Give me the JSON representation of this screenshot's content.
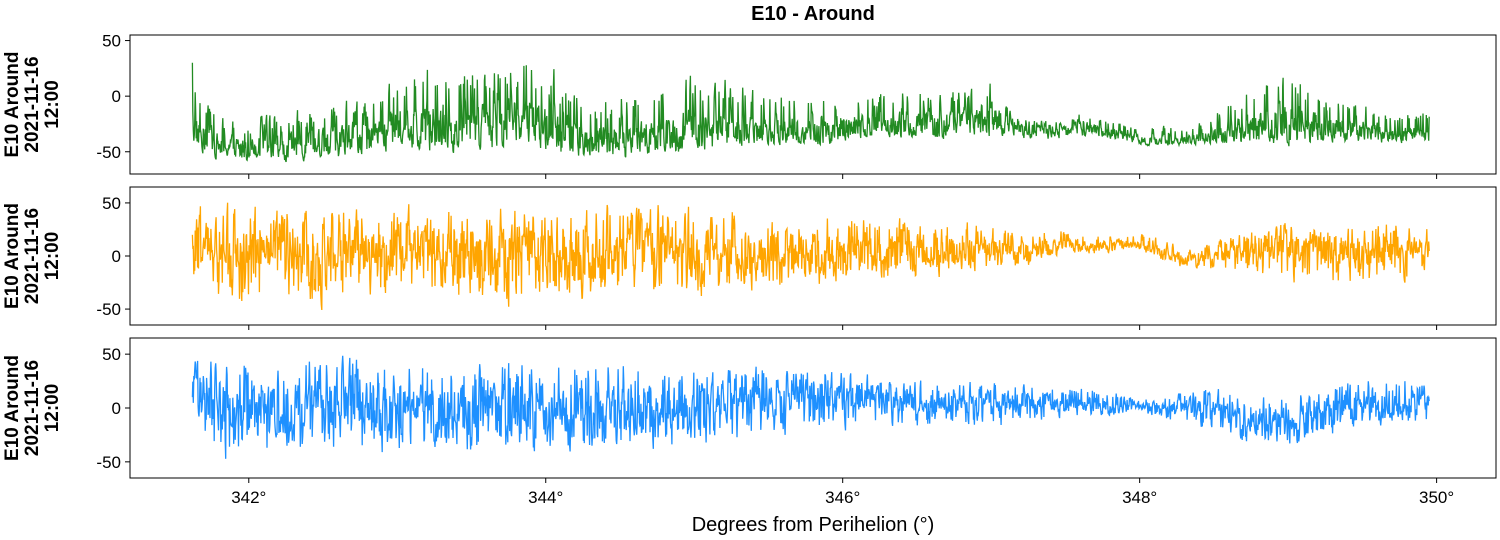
{
  "figure": {
    "title": "E10 - Around",
    "xlabel": "Degrees from Perihelion (°)"
  },
  "chart_data": {
    "type": "line",
    "title": "E10 - Around",
    "xlabel": "Degrees from Perihelion (°)",
    "xlim": [
      341.2,
      350.4
    ],
    "x_ticks": [
      342,
      344,
      346,
      348,
      350
    ],
    "x_tick_labels": [
      "342°",
      "344°",
      "346°",
      "348°",
      "350°"
    ],
    "x_range": [
      341.62,
      349.95
    ],
    "grid": false,
    "legend": "none",
    "series": [
      {
        "ylabel_lines": [
          "E10 Around",
          "2021-11-16",
          "12:00"
        ],
        "color": "#228B22",
        "ylim": [
          -70,
          55
        ],
        "y_ticks": [
          -50,
          0,
          50
        ],
        "profile": [
          [
            341.62,
            -52,
            -30,
            30
          ],
          [
            341.8,
            -60,
            -45,
            -10
          ],
          [
            342.0,
            -62,
            -45,
            -15
          ],
          [
            342.3,
            -62,
            -45,
            -5
          ],
          [
            342.5,
            -60,
            -40,
            0
          ],
          [
            342.8,
            -58,
            -35,
            5
          ],
          [
            343.0,
            -50,
            -25,
            25
          ],
          [
            343.2,
            -55,
            -25,
            40
          ],
          [
            343.4,
            -55,
            -25,
            45
          ],
          [
            343.6,
            -55,
            -25,
            40
          ],
          [
            343.8,
            -50,
            -20,
            45
          ],
          [
            343.9,
            -52,
            -20,
            48
          ],
          [
            344.1,
            -58,
            -35,
            30
          ],
          [
            344.3,
            -58,
            -40,
            5
          ],
          [
            344.5,
            -60,
            -40,
            10
          ],
          [
            344.7,
            -55,
            -35,
            20
          ],
          [
            344.9,
            -55,
            -30,
            30
          ],
          [
            345.1,
            -55,
            -30,
            25
          ],
          [
            345.3,
            -50,
            -30,
            20
          ],
          [
            345.5,
            -45,
            -30,
            15
          ],
          [
            345.7,
            -45,
            -30,
            15
          ],
          [
            345.9,
            -45,
            -30,
            20
          ],
          [
            346.1,
            -40,
            -25,
            15
          ],
          [
            346.3,
            -40,
            -25,
            10
          ],
          [
            346.5,
            -40,
            -25,
            20
          ],
          [
            346.7,
            -40,
            -25,
            15
          ],
          [
            346.9,
            -38,
            -20,
            15
          ],
          [
            347.0,
            -40,
            -20,
            28
          ],
          [
            347.15,
            -40,
            -30,
            -15
          ],
          [
            347.4,
            -40,
            -30,
            -18
          ],
          [
            347.6,
            -38,
            -28,
            -12
          ],
          [
            347.8,
            -40,
            -32,
            -15
          ],
          [
            348.0,
            -44,
            -40,
            -25
          ],
          [
            348.2,
            -45,
            -40,
            -25
          ],
          [
            348.4,
            -44,
            -38,
            -20
          ],
          [
            348.5,
            -44,
            -35,
            -5
          ],
          [
            348.7,
            -45,
            -30,
            20
          ],
          [
            348.9,
            -45,
            -25,
            40
          ],
          [
            349.1,
            -45,
            -25,
            35
          ],
          [
            349.3,
            -45,
            -28,
            10
          ],
          [
            349.5,
            -45,
            -30,
            0
          ],
          [
            349.7,
            -44,
            -35,
            -10
          ],
          [
            349.95,
            -40,
            -36,
            -5
          ]
        ]
      },
      {
        "ylabel_lines": [
          "E10 Around",
          "2021-11-16",
          "12:00"
        ],
        "color": "#FFA500",
        "ylim": [
          -65,
          65
        ],
        "y_ticks": [
          -50,
          0,
          50
        ],
        "profile": [
          [
            341.62,
            -30,
            20,
            55
          ],
          [
            341.8,
            -55,
            10,
            58
          ],
          [
            342.0,
            -58,
            10,
            60
          ],
          [
            342.3,
            -55,
            5,
            55
          ],
          [
            342.5,
            -55,
            5,
            58
          ],
          [
            342.8,
            -50,
            0,
            55
          ],
          [
            343.0,
            -55,
            5,
            58
          ],
          [
            343.2,
            -50,
            5,
            55
          ],
          [
            343.4,
            -55,
            0,
            58
          ],
          [
            343.6,
            -55,
            0,
            55
          ],
          [
            343.8,
            -55,
            5,
            55
          ],
          [
            344.0,
            -50,
            5,
            55
          ],
          [
            344.2,
            -50,
            0,
            55
          ],
          [
            344.4,
            -55,
            0,
            55
          ],
          [
            344.6,
            -55,
            10,
            55
          ],
          [
            344.8,
            -50,
            10,
            58
          ],
          [
            345.0,
            -45,
            0,
            55
          ],
          [
            345.2,
            -45,
            0,
            50
          ],
          [
            345.4,
            -40,
            0,
            50
          ],
          [
            345.6,
            -40,
            5,
            50
          ],
          [
            345.8,
            -35,
            0,
            45
          ],
          [
            346.0,
            -35,
            5,
            50
          ],
          [
            346.2,
            -30,
            5,
            45
          ],
          [
            346.4,
            -30,
            10,
            45
          ],
          [
            346.6,
            -25,
            5,
            40
          ],
          [
            346.8,
            -20,
            5,
            40
          ],
          [
            347.0,
            -20,
            10,
            35
          ],
          [
            347.2,
            -15,
            5,
            30
          ],
          [
            347.4,
            -5,
            10,
            30
          ],
          [
            347.6,
            0,
            10,
            25
          ],
          [
            347.8,
            0,
            12,
            25
          ],
          [
            348.0,
            5,
            10,
            25
          ],
          [
            348.2,
            -10,
            0,
            15
          ],
          [
            348.4,
            -15,
            -5,
            10
          ],
          [
            348.6,
            -25,
            5,
            25
          ],
          [
            348.8,
            -30,
            10,
            35
          ],
          [
            349.0,
            -35,
            10,
            38
          ],
          [
            349.2,
            -35,
            10,
            35
          ],
          [
            349.4,
            -40,
            5,
            35
          ],
          [
            349.6,
            -35,
            5,
            38
          ],
          [
            349.8,
            -30,
            5,
            40
          ],
          [
            349.95,
            -20,
            5,
            35
          ]
        ]
      },
      {
        "ylabel_lines": [
          "E10 Around",
          "2021-11-16",
          "12:00"
        ],
        "color": "#1E90FF",
        "ylim": [
          -65,
          65
        ],
        "y_ticks": [
          -50,
          0,
          50
        ],
        "profile": [
          [
            341.62,
            -55,
            10,
            55
          ],
          [
            341.8,
            -60,
            5,
            57
          ],
          [
            342.0,
            -55,
            0,
            55
          ],
          [
            342.2,
            -55,
            0,
            55
          ],
          [
            342.4,
            -55,
            5,
            57
          ],
          [
            342.6,
            -50,
            5,
            55
          ],
          [
            342.8,
            -58,
            0,
            55
          ],
          [
            343.0,
            -50,
            0,
            55
          ],
          [
            343.2,
            -50,
            0,
            55
          ],
          [
            343.4,
            -50,
            0,
            55
          ],
          [
            343.6,
            -50,
            5,
            55
          ],
          [
            343.8,
            -50,
            0,
            55
          ],
          [
            344.0,
            -55,
            0,
            55
          ],
          [
            344.2,
            -50,
            0,
            55
          ],
          [
            344.4,
            -50,
            0,
            55
          ],
          [
            344.6,
            -50,
            0,
            55
          ],
          [
            344.8,
            -45,
            0,
            50
          ],
          [
            345.0,
            -45,
            0,
            50
          ],
          [
            345.2,
            -45,
            5,
            50
          ],
          [
            345.4,
            -35,
            10,
            45
          ],
          [
            345.6,
            -35,
            10,
            45
          ],
          [
            345.8,
            -30,
            10,
            45
          ],
          [
            346.0,
            -25,
            10,
            40
          ],
          [
            346.2,
            -25,
            10,
            35
          ],
          [
            346.4,
            -25,
            5,
            30
          ],
          [
            346.6,
            -25,
            5,
            30
          ],
          [
            346.8,
            -20,
            5,
            30
          ],
          [
            347.0,
            -25,
            5,
            30
          ],
          [
            347.2,
            -20,
            5,
            30
          ],
          [
            347.4,
            -15,
            5,
            25
          ],
          [
            347.6,
            -10,
            5,
            25
          ],
          [
            347.8,
            -10,
            0,
            20
          ],
          [
            348.0,
            -5,
            2,
            10
          ],
          [
            348.2,
            -15,
            0,
            15
          ],
          [
            348.4,
            -25,
            5,
            25
          ],
          [
            348.6,
            -30,
            -5,
            20
          ],
          [
            348.8,
            -40,
            -15,
            15
          ],
          [
            349.0,
            -40,
            -10,
            20
          ],
          [
            349.2,
            -35,
            0,
            25
          ],
          [
            349.4,
            -30,
            5,
            30
          ],
          [
            349.6,
            -25,
            5,
            35
          ],
          [
            349.8,
            -20,
            5,
            40
          ],
          [
            349.95,
            -20,
            5,
            25
          ]
        ]
      }
    ]
  }
}
